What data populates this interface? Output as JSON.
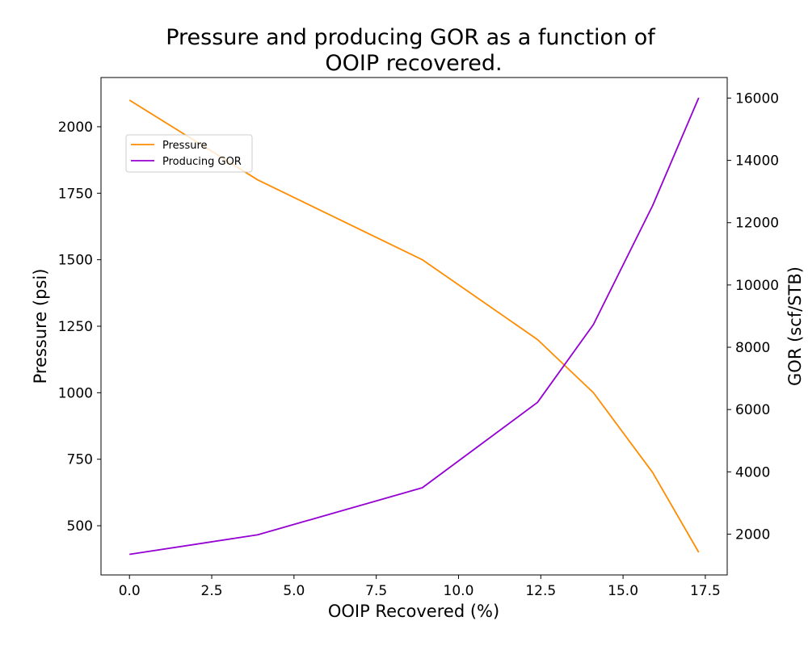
{
  "chart_data": {
    "type": "line",
    "title_lines": [
      "Pressure and producing GOR as a function of",
      "OOIP recovered."
    ],
    "xlabel": "OOIP Recovered (%)",
    "ylabel_left": "Pressure (psi)",
    "ylabel_right": "GOR (scf/STB)",
    "xlim": [
      -0.865,
      18.165
    ],
    "ylim_left": [
      315,
      2185
    ],
    "ylim_right": [
      690,
      16660
    ],
    "x_ticks": [
      0.0,
      2.5,
      5.0,
      7.5,
      10.0,
      12.5,
      15.0,
      17.5
    ],
    "x_tick_labels": [
      "0.0",
      "2.5",
      "5.0",
      "7.5",
      "10.0",
      "12.5",
      "15.0",
      "17.5"
    ],
    "y_left_ticks": [
      500,
      750,
      1000,
      1250,
      1500,
      1750,
      2000
    ],
    "y_left_tick_labels": [
      "500",
      "750",
      "1000",
      "1250",
      "1500",
      "1750",
      "2000"
    ],
    "y_right_ticks": [
      2000,
      4000,
      6000,
      8000,
      10000,
      12000,
      14000,
      16000
    ],
    "y_right_tick_labels": [
      "2000",
      "4000",
      "6000",
      "8000",
      "10000",
      "12000",
      "14000",
      "16000"
    ],
    "legend_position": "upper-left",
    "series": [
      {
        "name": "Pressure",
        "axis": "left",
        "color": "#ff8c00",
        "x": [
          0.0,
          3.9,
          8.9,
          12.4,
          14.1,
          15.9,
          17.3
        ],
        "y": [
          2100,
          1800,
          1500,
          1200,
          1000,
          700,
          400
        ]
      },
      {
        "name": "Producing GOR",
        "axis": "right",
        "color": "#9400d3",
        "x": [
          0.0,
          3.9,
          8.9,
          12.4,
          14.1,
          15.9,
          17.3
        ],
        "y": [
          1350,
          1980,
          3490,
          6230,
          8730,
          12550,
          16010
        ]
      }
    ]
  }
}
